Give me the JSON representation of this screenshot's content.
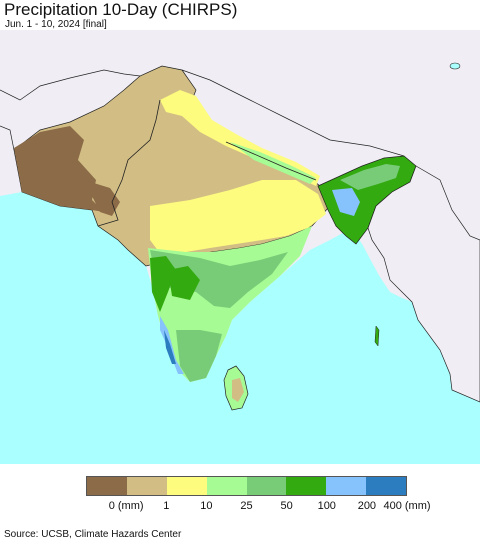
{
  "header": {
    "title": "Precipitation 10-Day (CHIRPS)",
    "subtitle": "Jun. 1 - 10, 2024 [final]"
  },
  "map": {
    "ocean_color": "#aaffff",
    "outside_region_color": "#f0eef4",
    "border_color": "#222222"
  },
  "legend": {
    "colors": [
      "#8b6b48",
      "#d2be85",
      "#fdfc7e",
      "#a7fb94",
      "#78cc77",
      "#33aa0f",
      "#86c3fd",
      "#2b7dc0"
    ],
    "ticks": [
      "0 (mm)",
      "1",
      "10",
      "25",
      "50",
      "100",
      "200",
      "400 (mm)"
    ]
  },
  "footer": {
    "source": "Source: UCSB, Climate Hazards Center"
  }
}
